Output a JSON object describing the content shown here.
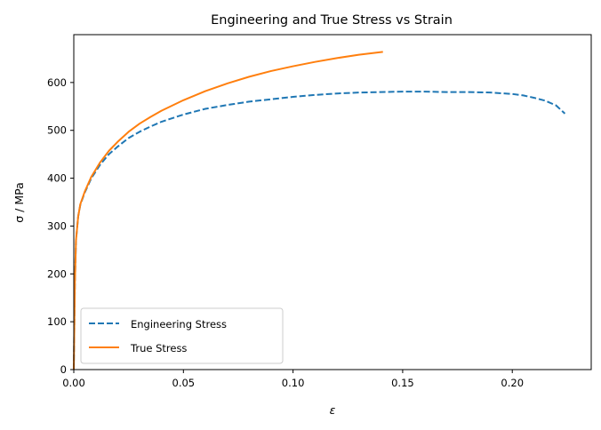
{
  "chart_data": {
    "type": "line",
    "title": "Engineering and True Stress vs Strain",
    "xlabel": "ε",
    "ylabel": "σ / MPa",
    "xlim": [
      0,
      0.236
    ],
    "ylim": [
      0,
      700
    ],
    "xticks": [
      0.0,
      0.05,
      0.1,
      0.15,
      0.2
    ],
    "xtick_labels": [
      "0.00",
      "0.05",
      "0.10",
      "0.15",
      "0.20"
    ],
    "yticks": [
      0,
      100,
      200,
      300,
      400,
      500,
      600
    ],
    "ytick_labels": [
      "0",
      "100",
      "200",
      "300",
      "400",
      "500",
      "600"
    ],
    "grid": false,
    "legend": {
      "position": "lower-left"
    },
    "series": [
      {
        "name": "Engineering Stress",
        "color": "#1f77b4",
        "style": "dashed",
        "x": [
          0.0,
          0.0005,
          0.001,
          0.002,
          0.003,
          0.005,
          0.008,
          0.012,
          0.016,
          0.02,
          0.025,
          0.03,
          0.035,
          0.04,
          0.05,
          0.06,
          0.07,
          0.08,
          0.09,
          0.1,
          0.11,
          0.12,
          0.13,
          0.14,
          0.15,
          0.16,
          0.17,
          0.18,
          0.19,
          0.2,
          0.205,
          0.21,
          0.215,
          0.22,
          0.224
        ],
        "y": [
          0,
          180,
          270,
          320,
          345,
          370,
          400,
          428,
          450,
          466,
          484,
          497,
          508,
          518,
          533,
          545,
          553,
          560,
          565,
          570,
          574,
          577,
          579,
          580,
          581,
          581,
          580,
          580,
          579,
          576,
          573,
          568,
          562,
          552,
          535
        ]
      },
      {
        "name": "True Stress",
        "color": "#ff7f0e",
        "style": "solid",
        "x": [
          0.0,
          0.0005,
          0.001,
          0.002,
          0.003,
          0.005,
          0.008,
          0.012,
          0.016,
          0.02,
          0.025,
          0.03,
          0.035,
          0.04,
          0.05,
          0.06,
          0.07,
          0.08,
          0.09,
          0.1,
          0.11,
          0.12,
          0.13,
          0.141
        ],
        "y": [
          0,
          180,
          270,
          320,
          346,
          372,
          403,
          433,
          457,
          476,
          497,
          514,
          528,
          541,
          563,
          582,
          598,
          612,
          624,
          634,
          643,
          651,
          658,
          664
        ]
      }
    ]
  }
}
